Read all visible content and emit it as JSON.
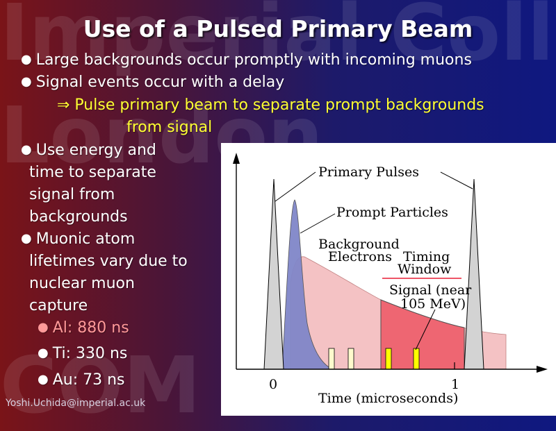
{
  "slide": {
    "title": "Use of a Pulsed Primary Beam",
    "bullets": [
      "Large backgrounds occur promptly with incoming muons",
      "Signal events occur with a delay"
    ],
    "arrow_line1": "⇒ Pulse primary beam to separate prompt backgrounds",
    "arrow_line2": "from signal",
    "energy_lines": [
      "Use energy and",
      "time to separate",
      "signal from",
      "backgrounds"
    ],
    "muonic_lines": [
      "Muonic atom",
      "lifetimes vary due to",
      "nuclear muon",
      "capture"
    ],
    "sub_bullets": [
      "Al: 880 ns",
      "Ti: 330 ns",
      "Au: 73 ns"
    ],
    "footer": "Yoshi.Uchida@imperial.ac.uk",
    "watermark": [
      "Imperial College",
      "London",
      "COM"
    ]
  },
  "diagram": {
    "labels": {
      "primary_pulses": "Primary Pulses",
      "prompt_particles": "Prompt Particles",
      "background_electrons_1": "Background",
      "background_electrons_2": "Electrons",
      "timing_window_1": "Timing",
      "timing_window_2": "Window",
      "signal_1": "Signal (near",
      "signal_2": "105 MeV)",
      "tick_0": "0",
      "tick_1": "1",
      "xlabel": "Time (microseconds)"
    },
    "colors": {
      "pulse": "#d3d3d3",
      "prompt": "#7f86c8",
      "background": "#f4c2c4",
      "signal": "#ee6672",
      "timing_line": "#ee5566",
      "marker_pale": "#fffacd",
      "marker_yellow": "#ffff00"
    }
  }
}
